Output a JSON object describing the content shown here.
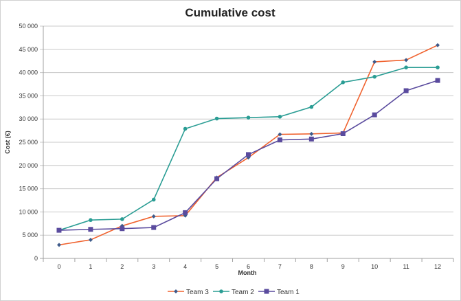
{
  "chart_data": {
    "type": "line",
    "title": "Cumulative cost",
    "xlabel": "Month",
    "ylabel": "Cost (€)",
    "categories": [
      "0",
      "1",
      "2",
      "3",
      "4",
      "5",
      "6",
      "7",
      "8",
      "9",
      "10",
      "11",
      "12"
    ],
    "ylim": [
      0,
      50000
    ],
    "yticks": [
      "0",
      "5 000",
      "10 000",
      "15 000",
      "20 000",
      "25 000",
      "30 000",
      "35 000",
      "40 000",
      "45 000",
      "50 000"
    ],
    "grid": true,
    "legend": "bottom",
    "series": [
      {
        "name": "Team 3",
        "color": "#f0622e",
        "marker": "diamond",
        "values": [
          2900,
          4000,
          7000,
          9050,
          9200,
          17400,
          21700,
          26700,
          26800,
          27000,
          42300,
          42700,
          45900
        ]
      },
      {
        "name": "Team 2",
        "color": "#2a9d94",
        "marker": "circle",
        "values": [
          6050,
          8250,
          8450,
          12650,
          27900,
          30100,
          30300,
          30500,
          32600,
          37900,
          39100,
          41100,
          41100
        ]
      },
      {
        "name": "Team 1",
        "color": "#5a4b9e",
        "marker": "square",
        "values": [
          6050,
          6250,
          6400,
          6650,
          9850,
          17150,
          22350,
          25500,
          25700,
          26850,
          30900,
          36100,
          38300
        ]
      }
    ]
  }
}
